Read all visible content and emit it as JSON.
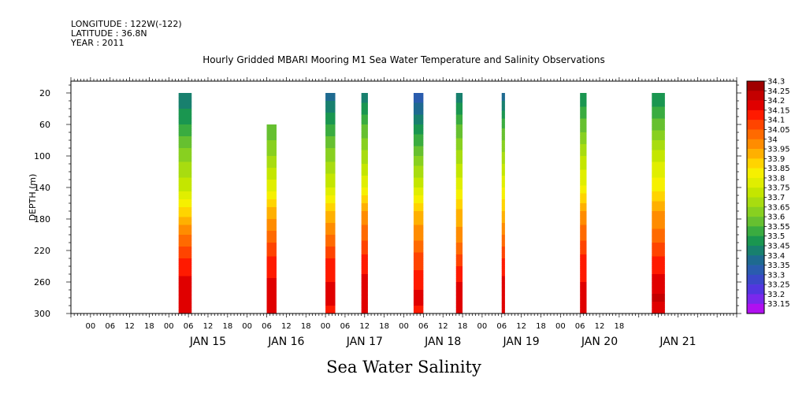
{
  "header": {
    "longitude": "LONGITUDE : 122W(-122)",
    "latitude": "LATITUDE : 36.8N",
    "year": "YEAR : 2011"
  },
  "chart_data": {
    "type": "heatmap",
    "title": "Hourly Gridded MBARI Mooring M1 Sea Water Temperature and Salinity Observations",
    "bottom_title": "Sea Water Salinity",
    "ylabel": "DEPTH (m)",
    "y_inverted": true,
    "ylim": [
      300,
      5
    ],
    "xlim_hours": [
      -30,
      174
    ],
    "y_ticks": [
      20,
      60,
      100,
      140,
      180,
      220,
      260,
      300
    ],
    "hour_tick_labels": [
      "00",
      "06",
      "12",
      "18",
      "00",
      "06",
      "12",
      "18",
      "00",
      "06",
      "12",
      "18",
      "00",
      "06",
      "12",
      "18",
      "00",
      "06",
      "12",
      "18",
      "00",
      "06",
      "12",
      "18",
      "00",
      "06",
      "12",
      "18"
    ],
    "date_labels": [
      "JAN 15",
      "JAN 16",
      "JAN 17",
      "JAN 18",
      "JAN 19",
      "JAN 20",
      "JAN 21"
    ],
    "colorbar_levels": [
      "34.3",
      "34.25",
      "34.2",
      "34.15",
      "34.1",
      "34.05",
      "34",
      "33.95",
      "33.9",
      "33.85",
      "33.8",
      "33.75",
      "33.7",
      "33.65",
      "33.6",
      "33.55",
      "33.5",
      "33.45",
      "33.4",
      "33.35",
      "33.3",
      "33.25",
      "33.2",
      "33.15"
    ],
    "colorbar_colors": [
      "#a00000",
      "#c40000",
      "#e00000",
      "#ff1a00",
      "#ff4400",
      "#ff6a00",
      "#ff8c00",
      "#ffb000",
      "#ffd400",
      "#f6f000",
      "#e0ee00",
      "#c4e600",
      "#a8dc10",
      "#88d020",
      "#66c030",
      "#3aac40",
      "#1a9650",
      "#18806e",
      "#1e6a90",
      "#2a5cae",
      "#3a48c8",
      "#5236e0",
      "#7a28ec",
      "#b010f0"
    ],
    "segments": [
      {
        "date": "JAN 15",
        "start_hour": 3,
        "end_hour": 7,
        "top_depth": 20,
        "profile": [
          33.45,
          33.55,
          33.68,
          33.78,
          33.92,
          34.05,
          34.15,
          34.22,
          34.25,
          34.22
        ]
      },
      {
        "date": "JAN 16",
        "start_hour": 6,
        "end_hour": 9,
        "top_depth": 60,
        "profile": [
          33.5,
          33.6,
          33.7,
          33.83,
          33.97,
          34.07,
          34.16,
          34.21,
          34.24,
          34.2
        ]
      },
      {
        "date": "JAN 17",
        "start_hour": 0,
        "end_hour": 3,
        "top_depth": 20,
        "profile": [
          33.42,
          33.55,
          33.68,
          33.8,
          33.95,
          34.05,
          34.15,
          34.2,
          34.22,
          34.18
        ]
      },
      {
        "date": "JAN 17",
        "start_hour": 11,
        "end_hour": 13,
        "top_depth": 20,
        "profile": [
          33.45,
          33.6,
          33.72,
          33.85,
          34.0,
          34.08,
          34.16,
          34.22,
          34.24,
          34.2
        ]
      },
      {
        "date": "JAN 18",
        "start_hour": 3,
        "end_hour": 6,
        "top_depth": 20,
        "profile": [
          33.35,
          33.5,
          33.65,
          33.8,
          33.95,
          34.03,
          34.12,
          34.18,
          34.22,
          34.18
        ]
      },
      {
        "date": "JAN 18",
        "start_hour": 16,
        "end_hour": 18,
        "top_depth": 20,
        "profile": [
          33.45,
          33.6,
          33.72,
          33.84,
          33.96,
          34.02,
          34.12,
          34.2,
          34.22,
          34.2
        ]
      },
      {
        "date": "JAN 19",
        "start_hour": 6,
        "end_hour": 7,
        "top_depth": 20,
        "profile": [
          33.4,
          33.58,
          33.72,
          33.85,
          33.95,
          34.05,
          34.15,
          34.22,
          34.25,
          34.2
        ]
      },
      {
        "date": "JAN 20",
        "start_hour": 6,
        "end_hour": 8,
        "top_depth": 20,
        "profile": [
          33.5,
          33.62,
          33.75,
          33.86,
          34.0,
          34.08,
          34.16,
          34.2,
          34.24,
          34.2
        ]
      },
      {
        "date": "JAN 21",
        "start_hour": 4,
        "end_hour": 8,
        "top_depth": 20,
        "profile": [
          33.5,
          33.62,
          33.78,
          33.88,
          34.0,
          34.07,
          34.16,
          34.22,
          34.26,
          34.22
        ]
      }
    ],
    "profile_depths": [
      20,
      60,
      100,
      140,
      170,
      200,
      230,
      260,
      280,
      300
    ]
  }
}
